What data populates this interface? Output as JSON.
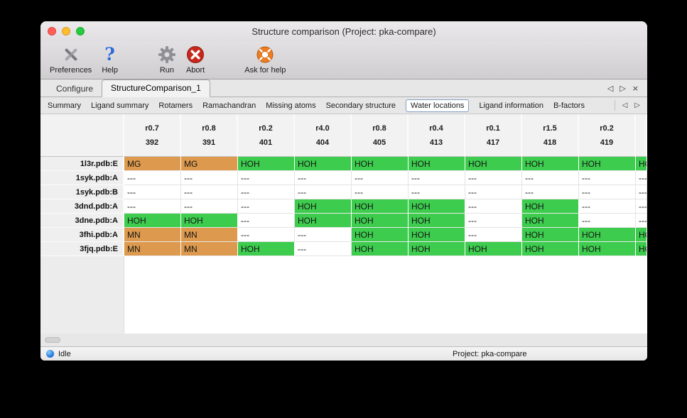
{
  "window": {
    "title": "Structure comparison (Project: pka-compare)"
  },
  "toolbar": {
    "help_glyph": "?",
    "items": [
      {
        "label": "Preferences",
        "icon": "crossed-tools-icon"
      },
      {
        "label": "Help",
        "icon": "question-mark-icon"
      },
      {
        "label": "Run",
        "icon": "gear-icon"
      },
      {
        "label": "Abort",
        "icon": "abort-cross-icon"
      },
      {
        "label": "Ask for help",
        "icon": "lifebuoy-icon"
      }
    ]
  },
  "tabs": {
    "items": [
      {
        "label": "Configure",
        "active": false
      },
      {
        "label": "StructureComparison_1",
        "active": true
      }
    ],
    "controls": {
      "back": "◁",
      "forward": "▷",
      "close": "×"
    }
  },
  "subtabs": {
    "items": [
      "Summary",
      "Ligand summary",
      "Rotamers",
      "Ramachandran",
      "Missing atoms",
      "Secondary structure",
      "Water locations",
      "Ligand information",
      "B-factors"
    ],
    "active": "Water locations",
    "controls": {
      "back": "◁",
      "forward": "▷"
    }
  },
  "colors": {
    "water_green": "#3ecc4f",
    "metal_orange": "#dd9a4e"
  },
  "table": {
    "columns": [
      {
        "line1": "r0.7",
        "line2": "392"
      },
      {
        "line1": "r0.8",
        "line2": "391"
      },
      {
        "line1": "r0.2",
        "line2": "401"
      },
      {
        "line1": "r4.0",
        "line2": "404"
      },
      {
        "line1": "r0.8",
        "line2": "405"
      },
      {
        "line1": "r0.4",
        "line2": "413"
      },
      {
        "line1": "r0.1",
        "line2": "417"
      },
      {
        "line1": "r1.5",
        "line2": "418"
      },
      {
        "line1": "r0.2",
        "line2": "419"
      },
      {
        "line1": "",
        "line2": ""
      }
    ],
    "rows": [
      {
        "label": "1l3r.pdb:E",
        "cells": [
          {
            "text": "MG",
            "type": "metal"
          },
          {
            "text": "MG",
            "type": "metal"
          },
          {
            "text": "HOH",
            "type": "water"
          },
          {
            "text": "HOH",
            "type": "water"
          },
          {
            "text": "HOH",
            "type": "water"
          },
          {
            "text": "HOH",
            "type": "water"
          },
          {
            "text": "HOH",
            "type": "water"
          },
          {
            "text": "HOH",
            "type": "water"
          },
          {
            "text": "HOH",
            "type": "water"
          },
          {
            "text": "HOH",
            "type": "water"
          }
        ]
      },
      {
        "label": "1syk.pdb:A",
        "cells": [
          {
            "text": "---",
            "type": "none"
          },
          {
            "text": "---",
            "type": "none"
          },
          {
            "text": "---",
            "type": "none"
          },
          {
            "text": "---",
            "type": "none"
          },
          {
            "text": "---",
            "type": "none"
          },
          {
            "text": "---",
            "type": "none"
          },
          {
            "text": "---",
            "type": "none"
          },
          {
            "text": "---",
            "type": "none"
          },
          {
            "text": "---",
            "type": "none"
          },
          {
            "text": "---",
            "type": "none"
          }
        ]
      },
      {
        "label": "1syk.pdb:B",
        "cells": [
          {
            "text": "---",
            "type": "none"
          },
          {
            "text": "---",
            "type": "none"
          },
          {
            "text": "---",
            "type": "none"
          },
          {
            "text": "---",
            "type": "none"
          },
          {
            "text": "---",
            "type": "none"
          },
          {
            "text": "---",
            "type": "none"
          },
          {
            "text": "---",
            "type": "none"
          },
          {
            "text": "---",
            "type": "none"
          },
          {
            "text": "---",
            "type": "none"
          },
          {
            "text": "---",
            "type": "none"
          }
        ]
      },
      {
        "label": "3dnd.pdb:A",
        "cells": [
          {
            "text": "---",
            "type": "none"
          },
          {
            "text": "---",
            "type": "none"
          },
          {
            "text": "---",
            "type": "none"
          },
          {
            "text": "HOH",
            "type": "water"
          },
          {
            "text": "HOH",
            "type": "water"
          },
          {
            "text": "HOH",
            "type": "water"
          },
          {
            "text": "---",
            "type": "none"
          },
          {
            "text": "HOH",
            "type": "water"
          },
          {
            "text": "---",
            "type": "none"
          },
          {
            "text": "---",
            "type": "none"
          }
        ]
      },
      {
        "label": "3dne.pdb:A",
        "cells": [
          {
            "text": "HOH",
            "type": "water"
          },
          {
            "text": "HOH",
            "type": "water"
          },
          {
            "text": "---",
            "type": "none"
          },
          {
            "text": "HOH",
            "type": "water"
          },
          {
            "text": "HOH",
            "type": "water"
          },
          {
            "text": "HOH",
            "type": "water"
          },
          {
            "text": "---",
            "type": "none"
          },
          {
            "text": "HOH",
            "type": "water"
          },
          {
            "text": "---",
            "type": "none"
          },
          {
            "text": "---",
            "type": "none"
          }
        ]
      },
      {
        "label": "3fhi.pdb:A",
        "cells": [
          {
            "text": "MN",
            "type": "metal"
          },
          {
            "text": "MN",
            "type": "metal"
          },
          {
            "text": "---",
            "type": "none"
          },
          {
            "text": "---",
            "type": "none"
          },
          {
            "text": "HOH",
            "type": "water"
          },
          {
            "text": "HOH",
            "type": "water"
          },
          {
            "text": "---",
            "type": "none"
          },
          {
            "text": "HOH",
            "type": "water"
          },
          {
            "text": "HOH",
            "type": "water"
          },
          {
            "text": "HOH",
            "type": "water"
          }
        ]
      },
      {
        "label": "3fjq.pdb:E",
        "cells": [
          {
            "text": "MN",
            "type": "metal"
          },
          {
            "text": "MN",
            "type": "metal"
          },
          {
            "text": "HOH",
            "type": "water"
          },
          {
            "text": "---",
            "type": "none"
          },
          {
            "text": "HOH",
            "type": "water"
          },
          {
            "text": "HOH",
            "type": "water"
          },
          {
            "text": "HOH",
            "type": "water"
          },
          {
            "text": "HOH",
            "type": "water"
          },
          {
            "text": "HOH",
            "type": "water"
          },
          {
            "text": "HOH",
            "type": "water"
          }
        ]
      }
    ]
  },
  "statusbar": {
    "status": "Idle",
    "project": "Project: pka-compare"
  }
}
